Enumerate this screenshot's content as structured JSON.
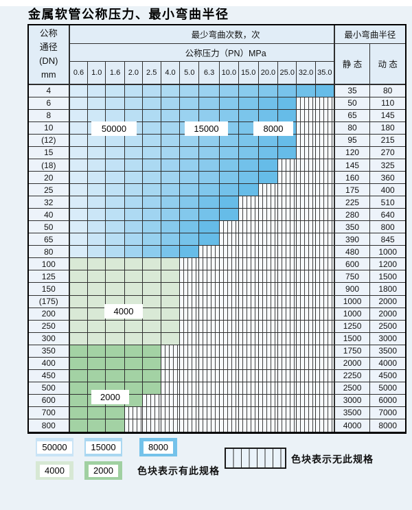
{
  "title": "金属软管公称压力、最小弯曲半径",
  "table": {
    "dn_header_lines": [
      "公称",
      "通径",
      "(DN)",
      "mm"
    ],
    "cycles_header": "最少弯曲次数，次",
    "pressure_header": "公称压力（PN）MPa",
    "radius_header": "最小弯曲半径",
    "static_header": "静 态",
    "dynamic_header": "动 态",
    "pressure_ticks": [
      "0.6",
      "1.0",
      "1.6",
      "2.0",
      "2.5",
      "4.0",
      "5.0",
      "6.3",
      "10.0",
      "15.0",
      "20.0",
      "25.0",
      "32.0",
      "35.0"
    ]
  },
  "region_labels": [
    {
      "text": "50000"
    },
    {
      "text": "15000"
    },
    {
      "text": "8000"
    },
    {
      "text": "4000"
    },
    {
      "text": "2000"
    }
  ],
  "legend": {
    "items": [
      {
        "label": "50000",
        "color": "#c9e4f6"
      },
      {
        "label": "15000",
        "color": "#a9d7f1"
      },
      {
        "label": "8000",
        "color": "#74c2ea"
      },
      {
        "label": "4000",
        "color": "#d7e8d4"
      },
      {
        "label": "2000",
        "color": "#a0d0a1"
      }
    ],
    "has_spec_text": "色块表示有此规格",
    "no_spec_text": "色块表示无此规格"
  },
  "colors": {
    "page_bg": "#ebf2f7",
    "header_bg": "#e1edf7",
    "label_bg": "#edf3fa",
    "blue_light": "#d9ecf9",
    "blue_dark": "#66bce8",
    "green_light": "#d9e9d6",
    "green_dark": "#a3d2a4",
    "stripe_bg": "#f7fafc",
    "stripe_line": "#3f3f3f",
    "grid_line": "#2e2e2e"
  },
  "chart_data": {
    "type": "heatmap",
    "title": "金属软管公称压力、最小弯曲半径",
    "x_label": "公称压力（PN）MPa",
    "x_ticks": [
      0.6,
      1.0,
      1.6,
      2.0,
      2.5,
      4.0,
      5.0,
      6.3,
      10.0,
      15.0,
      20.0,
      25.0,
      32.0,
      35.0
    ],
    "y_label": "公称通径(DN) mm",
    "cell_legend": {
      "blue_gradient": "最少弯曲次数 50000 / 15000 / 8000 次",
      "green_light": "最少弯曲次数 4000 次",
      "green_dark": "最少弯曲次数 2000 次",
      "striped": "无此规格"
    },
    "rows": [
      {
        "dn": "4",
        "zone": "blue",
        "max_pn": 35.0,
        "static": 35,
        "dynamic": 80
      },
      {
        "dn": "6",
        "zone": "blue",
        "max_pn": 25.0,
        "static": 50,
        "dynamic": 110
      },
      {
        "dn": "8",
        "zone": "blue",
        "max_pn": 25.0,
        "static": 65,
        "dynamic": 145
      },
      {
        "dn": "10",
        "zone": "blue",
        "max_pn": 25.0,
        "static": 80,
        "dynamic": 180
      },
      {
        "dn": "(12)",
        "zone": "blue",
        "max_pn": 25.0,
        "static": 95,
        "dynamic": 215
      },
      {
        "dn": "15",
        "zone": "blue",
        "max_pn": 25.0,
        "static": 120,
        "dynamic": 270
      },
      {
        "dn": "(18)",
        "zone": "blue",
        "max_pn": 20.0,
        "static": 145,
        "dynamic": 325
      },
      {
        "dn": "20",
        "zone": "blue",
        "max_pn": 20.0,
        "static": 160,
        "dynamic": 360
      },
      {
        "dn": "25",
        "zone": "blue",
        "max_pn": 15.0,
        "static": 175,
        "dynamic": 400
      },
      {
        "dn": "32",
        "zone": "blue",
        "max_pn": 10.0,
        "static": 225,
        "dynamic": 510
      },
      {
        "dn": "40",
        "zone": "blue",
        "max_pn": 10.0,
        "static": 280,
        "dynamic": 640
      },
      {
        "dn": "50",
        "zone": "blue",
        "max_pn": 6.3,
        "static": 350,
        "dynamic": 800
      },
      {
        "dn": "65",
        "zone": "blue",
        "max_pn": 6.3,
        "static": 390,
        "dynamic": 845
      },
      {
        "dn": "80",
        "zone": "blue",
        "max_pn": 5.0,
        "static": 480,
        "dynamic": 1000
      },
      {
        "dn": "100",
        "zone": "green_light",
        "max_pn": 4.0,
        "static": 600,
        "dynamic": 1200
      },
      {
        "dn": "125",
        "zone": "green_light",
        "max_pn": 4.0,
        "static": 750,
        "dynamic": 1500
      },
      {
        "dn": "150",
        "zone": "green_light",
        "max_pn": 4.0,
        "static": 900,
        "dynamic": 1800
      },
      {
        "dn": "(175)",
        "zone": "green_light",
        "max_pn": 4.0,
        "static": 1000,
        "dynamic": 2000
      },
      {
        "dn": "200",
        "zone": "green_light",
        "max_pn": 4.0,
        "static": 1000,
        "dynamic": 2000
      },
      {
        "dn": "250",
        "zone": "green_light",
        "max_pn": 4.0,
        "static": 1250,
        "dynamic": 2500
      },
      {
        "dn": "300",
        "zone": "green_light",
        "max_pn": 4.0,
        "static": 1500,
        "dynamic": 3000
      },
      {
        "dn": "350",
        "zone": "green_dark",
        "max_pn": 2.5,
        "static": 1750,
        "dynamic": 3500
      },
      {
        "dn": "400",
        "zone": "green_dark",
        "max_pn": 2.5,
        "static": 2000,
        "dynamic": 4000
      },
      {
        "dn": "450",
        "zone": "green_dark",
        "max_pn": 2.5,
        "static": 2250,
        "dynamic": 4500
      },
      {
        "dn": "500",
        "zone": "green_dark",
        "max_pn": 2.5,
        "static": 2500,
        "dynamic": 5000
      },
      {
        "dn": "600",
        "zone": "green_dark",
        "max_pn": 2.0,
        "static": 3000,
        "dynamic": 6000
      },
      {
        "dn": "700",
        "zone": "green_dark",
        "max_pn": 1.6,
        "static": 3500,
        "dynamic": 7000
      },
      {
        "dn": "800",
        "zone": "green_dark",
        "max_pn": 1.6,
        "static": 4000,
        "dynamic": 8000
      }
    ]
  }
}
